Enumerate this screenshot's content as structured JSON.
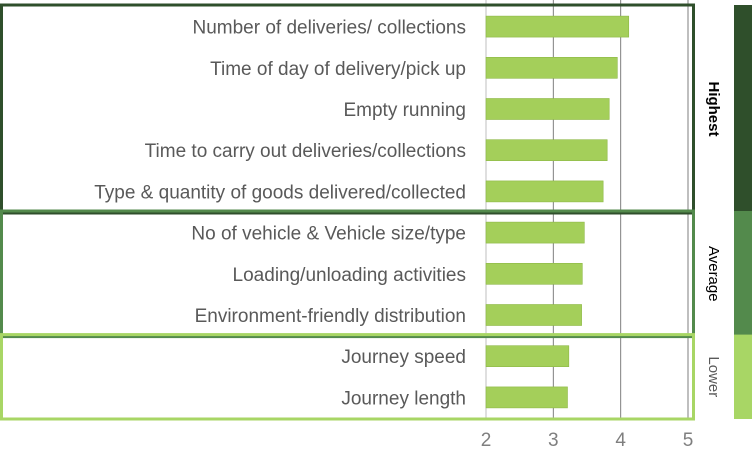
{
  "chart_data": {
    "type": "bar",
    "orientation": "horizontal",
    "title": "",
    "xlabel": "",
    "ylabel": "",
    "xlim": [
      2,
      5
    ],
    "x_ticks": [
      "2",
      "3",
      "4",
      "5"
    ],
    "grid": "vertical",
    "categories": [
      "Number of deliveries/ collections",
      "Time of day of delivery/pick up",
      "Empty running",
      "Time to carry out deliveries/collections",
      "Type & quantity of goods delivered/collected",
      "No of vehicle & Vehicle size/type",
      "Loading/unloading activities",
      "Environment-friendly distribution",
      "Journey speed",
      "Journey length"
    ],
    "values": [
      4.12,
      3.95,
      3.83,
      3.8,
      3.74,
      3.46,
      3.43,
      3.42,
      3.23,
      3.21
    ],
    "bar_color": "#a4cf5a",
    "groups": [
      {
        "label": "Highest",
        "start": 0,
        "end": 4,
        "color": "#2f4f2b",
        "bold": true,
        "text_color": "#000000"
      },
      {
        "label": "Average",
        "start": 5,
        "end": 7,
        "color": "#538a4c",
        "bold": false,
        "text_color": "#000000"
      },
      {
        "label": "Lower",
        "start": 8,
        "end": 9,
        "color": "#a8d665",
        "bold": false,
        "text_color": "#595959"
      }
    ]
  }
}
